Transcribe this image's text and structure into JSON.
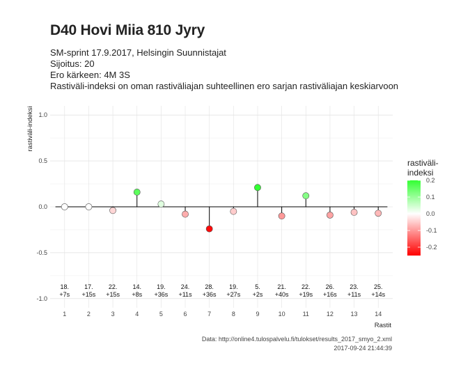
{
  "header": {
    "title": "D40 Hovi Miia 810 Jyry",
    "subtitle_lines": [
      "SM-sprint 17.9.2017, Helsingin Suunnistajat",
      "Sijoitus: 20",
      "Ero kärkeen: 4M 3S",
      "Rastiväli-indeksi on oman rastiväliajan suhteellinen ero sarjan rastiväliajan keskiarvoon"
    ]
  },
  "caption": {
    "line1": "Data: http://online4.tulospalvelu.fi/tulokset/results_2017_smyo_2.xml",
    "line2": "2017-09-24 21:44:39"
  },
  "chart_data": {
    "type": "scatter",
    "style": "lollipop",
    "xlabel": "Rastit",
    "ylabel": "rastiväli-indeksi",
    "x": [
      1,
      2,
      3,
      4,
      5,
      6,
      7,
      8,
      9,
      10,
      11,
      12,
      13,
      14
    ],
    "y": [
      0.0,
      0.0,
      -0.04,
      0.16,
      0.03,
      -0.08,
      -0.24,
      -0.05,
      0.21,
      -0.1,
      0.12,
      -0.09,
      -0.06,
      -0.07
    ],
    "annotations_rank": [
      "18.",
      "17.",
      "22.",
      "14.",
      "19.",
      "24.",
      "28.",
      "19.",
      "5.",
      "21.",
      "22.",
      "26.",
      "23.",
      "25."
    ],
    "annotations_diff": [
      "+7s",
      "+15s",
      "+15s",
      "+8s",
      "+36s",
      "+11s",
      "+36s",
      "+27s",
      "+2s",
      "+40s",
      "+19s",
      "+16s",
      "+11s",
      "+14s"
    ],
    "ylim": [
      -1.1,
      1.1
    ],
    "y_ticks": [
      -1.0,
      -0.5,
      0.0,
      0.5,
      1.0
    ],
    "y_tick_labels": [
      "-1.0",
      "-0.5",
      "0.0",
      "0.5",
      "1.0"
    ],
    "x_tick_labels": [
      "1",
      "2",
      "3",
      "4",
      "5",
      "6",
      "7",
      "8",
      "9",
      "10",
      "11",
      "12",
      "13",
      "14"
    ],
    "grid": true,
    "legend": {
      "title_line1": "rastiväli-",
      "title_line2": "indeksi",
      "placement": "right",
      "range": [
        -0.25,
        0.2
      ],
      "ticks": [
        0.2,
        0.1,
        0.0,
        -0.1,
        -0.2
      ],
      "tick_labels": [
        "0.2",
        "0.1",
        "0.0",
        "-0.1",
        "-0.2"
      ],
      "colors": {
        "high": "#33ff33",
        "mid": "#ffffff",
        "low": "#ff0000"
      }
    }
  }
}
